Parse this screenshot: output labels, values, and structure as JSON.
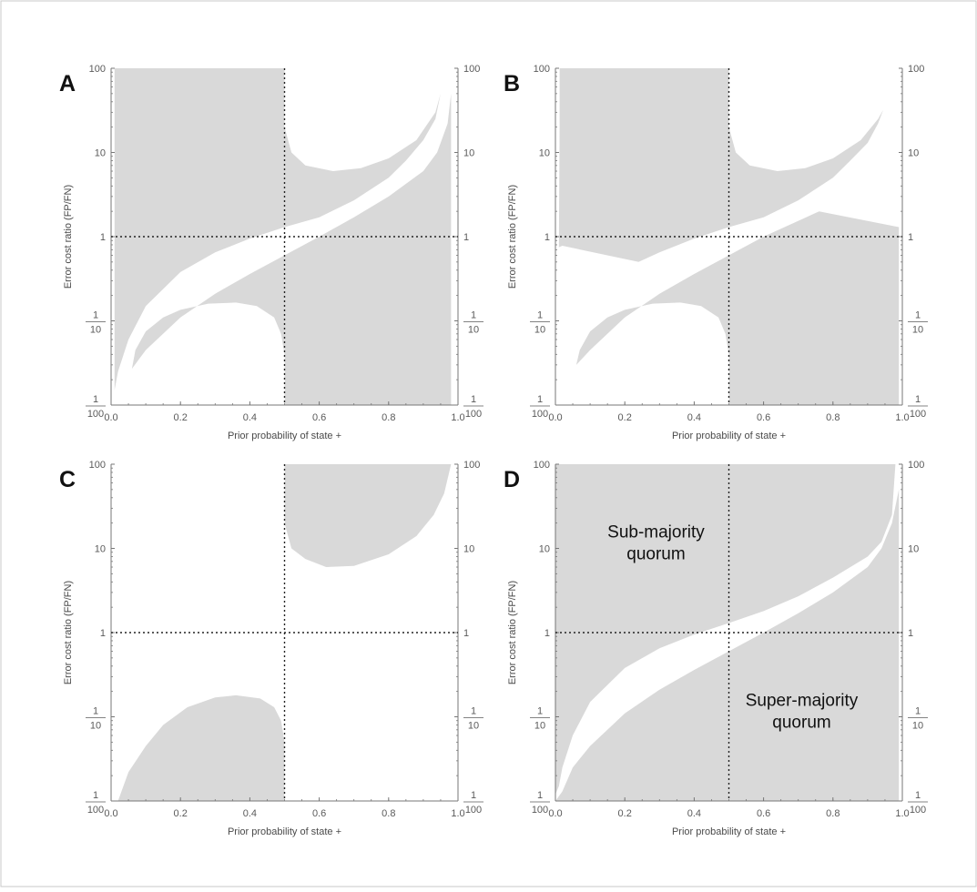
{
  "figure": {
    "region_fill": "#d9d9d9",
    "axis_color": "#777777",
    "guide_color": "#222222"
  },
  "chart_data": [
    {
      "type": "area",
      "panel_label": "A",
      "xlabel": "Prior probability of state +",
      "ylabel": "Error cost ratio (FP/FN)",
      "xlim": [
        0,
        1
      ],
      "ylim": [
        0.01,
        100
      ],
      "y_scale": "log",
      "x_ticks": [
        "0.0",
        "0.2",
        "0.4",
        "0.6",
        "0.8",
        "1.0"
      ],
      "y_ticks": [
        {
          "v": 100,
          "label": "100"
        },
        {
          "v": 10,
          "label": "10"
        },
        {
          "v": 1,
          "label": "1"
        },
        {
          "v": 0.1,
          "num": "1",
          "den": "10"
        },
        {
          "v": 0.01,
          "num": "1",
          "den": "100"
        }
      ],
      "reference_lines": {
        "x": 0.5,
        "y": 1
      },
      "shaded_regions": [
        [
          [
            0.01,
            100
          ],
          [
            0.5,
            100
          ],
          [
            0.5,
            20
          ],
          [
            0.52,
            10
          ],
          [
            0.56,
            7
          ],
          [
            0.64,
            6
          ],
          [
            0.72,
            6.5
          ],
          [
            0.8,
            8.5
          ],
          [
            0.88,
            14
          ],
          [
            0.935,
            30
          ],
          [
            0.95,
            50
          ],
          [
            0.935,
            25
          ],
          [
            0.9,
            14
          ],
          [
            0.85,
            8
          ],
          [
            0.8,
            5
          ],
          [
            0.7,
            2.7
          ],
          [
            0.6,
            1.7
          ],
          [
            0.5,
            1.3
          ],
          [
            0.4,
            0.95
          ],
          [
            0.3,
            0.65
          ],
          [
            0.2,
            0.38
          ],
          [
            0.1,
            0.15
          ],
          [
            0.05,
            0.06
          ],
          [
            0.02,
            0.025
          ],
          [
            0.01,
            0.015
          ]
        ],
        [
          [
            0.5,
            0.01
          ],
          [
            0.98,
            0.01
          ],
          [
            0.98,
            50
          ],
          [
            0.97,
            22
          ],
          [
            0.94,
            10
          ],
          [
            0.9,
            6
          ],
          [
            0.8,
            3
          ],
          [
            0.7,
            1.7
          ],
          [
            0.6,
            1.0
          ],
          [
            0.5,
            0.6
          ],
          [
            0.4,
            0.36
          ],
          [
            0.3,
            0.21
          ],
          [
            0.2,
            0.11
          ],
          [
            0.1,
            0.045
          ],
          [
            0.06,
            0.027
          ],
          [
            0.07,
            0.045
          ],
          [
            0.1,
            0.075
          ],
          [
            0.15,
            0.11
          ],
          [
            0.2,
            0.135
          ],
          [
            0.28,
            0.16
          ],
          [
            0.36,
            0.165
          ],
          [
            0.42,
            0.15
          ],
          [
            0.47,
            0.11
          ],
          [
            0.49,
            0.07
          ],
          [
            0.5,
            0.04
          ]
        ]
      ],
      "annotations": []
    },
    {
      "type": "area",
      "panel_label": "B",
      "xlabel": "Prior probability of state +",
      "ylabel": "Error cost ratio (FP/FN)",
      "xlim": [
        0,
        1
      ],
      "ylim": [
        0.01,
        100
      ],
      "y_scale": "log",
      "x_ticks": [
        "0.0",
        "0.2",
        "0.4",
        "0.6",
        "0.8",
        "1.0"
      ],
      "y_ticks": [
        {
          "v": 100,
          "label": "100"
        },
        {
          "v": 10,
          "label": "10"
        },
        {
          "v": 1,
          "label": "1"
        },
        {
          "v": 0.1,
          "num": "1",
          "den": "10"
        },
        {
          "v": 0.01,
          "num": "1",
          "den": "100"
        }
      ],
      "reference_lines": {
        "x": 0.5,
        "y": 1
      },
      "shaded_regions": [
        [
          [
            0.012,
            100
          ],
          [
            0.5,
            100
          ],
          [
            0.5,
            20
          ],
          [
            0.52,
            10
          ],
          [
            0.56,
            7
          ],
          [
            0.64,
            6
          ],
          [
            0.72,
            6.5
          ],
          [
            0.8,
            8.5
          ],
          [
            0.88,
            14
          ],
          [
            0.93,
            25
          ],
          [
            0.945,
            32
          ],
          [
            0.93,
            22
          ],
          [
            0.9,
            13
          ],
          [
            0.85,
            8
          ],
          [
            0.8,
            5
          ],
          [
            0.7,
            2.7
          ],
          [
            0.6,
            1.7
          ],
          [
            0.5,
            1.3
          ],
          [
            0.4,
            0.95
          ],
          [
            0.3,
            0.65
          ],
          [
            0.24,
            0.5
          ],
          [
            0.02,
            0.78
          ],
          [
            0.01,
            0.75
          ],
          [
            0.012,
            20
          ]
        ],
        [
          [
            0.5,
            0.01
          ],
          [
            0.99,
            0.01
          ],
          [
            0.99,
            1.3
          ],
          [
            0.76,
            2.0
          ],
          [
            0.6,
            1.0
          ],
          [
            0.5,
            0.6
          ],
          [
            0.4,
            0.36
          ],
          [
            0.3,
            0.21
          ],
          [
            0.2,
            0.11
          ],
          [
            0.1,
            0.045
          ],
          [
            0.06,
            0.03
          ],
          [
            0.07,
            0.045
          ],
          [
            0.1,
            0.075
          ],
          [
            0.15,
            0.11
          ],
          [
            0.2,
            0.135
          ],
          [
            0.28,
            0.16
          ],
          [
            0.36,
            0.165
          ],
          [
            0.42,
            0.15
          ],
          [
            0.47,
            0.11
          ],
          [
            0.49,
            0.07
          ],
          [
            0.5,
            0.04
          ]
        ]
      ],
      "annotations": []
    },
    {
      "type": "area",
      "panel_label": "C",
      "xlabel": "Prior probability of state +",
      "ylabel": "Error cost ratio (FP/FN)",
      "xlim": [
        0,
        1
      ],
      "ylim": [
        0.01,
        100
      ],
      "y_scale": "log",
      "x_ticks": [
        "0.0",
        "0.2",
        "0.4",
        "0.6",
        "0.8",
        "1.0"
      ],
      "y_ticks": [
        {
          "v": 100,
          "label": "100"
        },
        {
          "v": 10,
          "label": "10"
        },
        {
          "v": 1,
          "label": "1"
        },
        {
          "v": 0.1,
          "num": "1",
          "den": "10"
        },
        {
          "v": 0.01,
          "num": "1",
          "den": "100"
        }
      ],
      "reference_lines": {
        "x": 0.5,
        "y": 1
      },
      "shaded_regions": [
        [
          [
            0.5,
            100
          ],
          [
            0.5,
            20
          ],
          [
            0.52,
            10
          ],
          [
            0.56,
            7.5
          ],
          [
            0.62,
            6
          ],
          [
            0.7,
            6.2
          ],
          [
            0.8,
            8.5
          ],
          [
            0.88,
            14
          ],
          [
            0.93,
            25
          ],
          [
            0.96,
            45
          ],
          [
            0.98,
            100
          ]
        ],
        [
          [
            0.02,
            0.01
          ],
          [
            0.5,
            0.01
          ],
          [
            0.5,
            0.05
          ],
          [
            0.49,
            0.09
          ],
          [
            0.47,
            0.13
          ],
          [
            0.43,
            0.165
          ],
          [
            0.36,
            0.18
          ],
          [
            0.3,
            0.17
          ],
          [
            0.22,
            0.13
          ],
          [
            0.15,
            0.08
          ],
          [
            0.1,
            0.045
          ],
          [
            0.05,
            0.022
          ],
          [
            0.02,
            0.01
          ]
        ]
      ],
      "annotations": []
    },
    {
      "type": "area",
      "panel_label": "D",
      "xlabel": "Prior probability of state +",
      "ylabel": "Error cost ratio (FP/FN)",
      "xlim": [
        0,
        1
      ],
      "ylim": [
        0.01,
        100
      ],
      "y_scale": "log",
      "x_ticks": [
        "0.0",
        "0.2",
        "0.4",
        "0.6",
        "0.8",
        "1.0"
      ],
      "y_ticks": [
        {
          "v": 100,
          "label": "100"
        },
        {
          "v": 10,
          "label": "10"
        },
        {
          "v": 1,
          "label": "1"
        },
        {
          "v": 0.1,
          "num": "1",
          "den": "10"
        },
        {
          "v": 0.01,
          "num": "1",
          "den": "100"
        }
      ],
      "reference_lines": {
        "x": 0.5,
        "y": 1
      },
      "shaded_regions": [
        [
          [
            0.0,
            100
          ],
          [
            0.98,
            100
          ],
          [
            0.97,
            25
          ],
          [
            0.94,
            12
          ],
          [
            0.9,
            8
          ],
          [
            0.8,
            4.5
          ],
          [
            0.7,
            2.7
          ],
          [
            0.6,
            1.8
          ],
          [
            0.5,
            1.3
          ],
          [
            0.4,
            0.95
          ],
          [
            0.3,
            0.65
          ],
          [
            0.2,
            0.38
          ],
          [
            0.1,
            0.15
          ],
          [
            0.05,
            0.06
          ],
          [
            0.02,
            0.025
          ],
          [
            0.01,
            0.015
          ],
          [
            0.0,
            0.012
          ]
        ],
        [
          [
            0.0,
            0.01
          ],
          [
            0.99,
            0.01
          ],
          [
            0.99,
            50
          ],
          [
            0.97,
            20
          ],
          [
            0.94,
            10
          ],
          [
            0.9,
            6
          ],
          [
            0.8,
            3
          ],
          [
            0.7,
            1.7
          ],
          [
            0.6,
            1.0
          ],
          [
            0.5,
            0.6
          ],
          [
            0.4,
            0.36
          ],
          [
            0.3,
            0.21
          ],
          [
            0.2,
            0.11
          ],
          [
            0.1,
            0.045
          ],
          [
            0.05,
            0.025
          ],
          [
            0.02,
            0.013
          ],
          [
            0.0,
            0.01
          ]
        ]
      ],
      "annotations": [
        {
          "text": [
            "Sub-majority",
            "quorum"
          ],
          "x": 0.29,
          "y": 10
        },
        {
          "text": [
            "Super-majority",
            "quorum"
          ],
          "x": 0.71,
          "y": 0.1
        }
      ]
    }
  ]
}
